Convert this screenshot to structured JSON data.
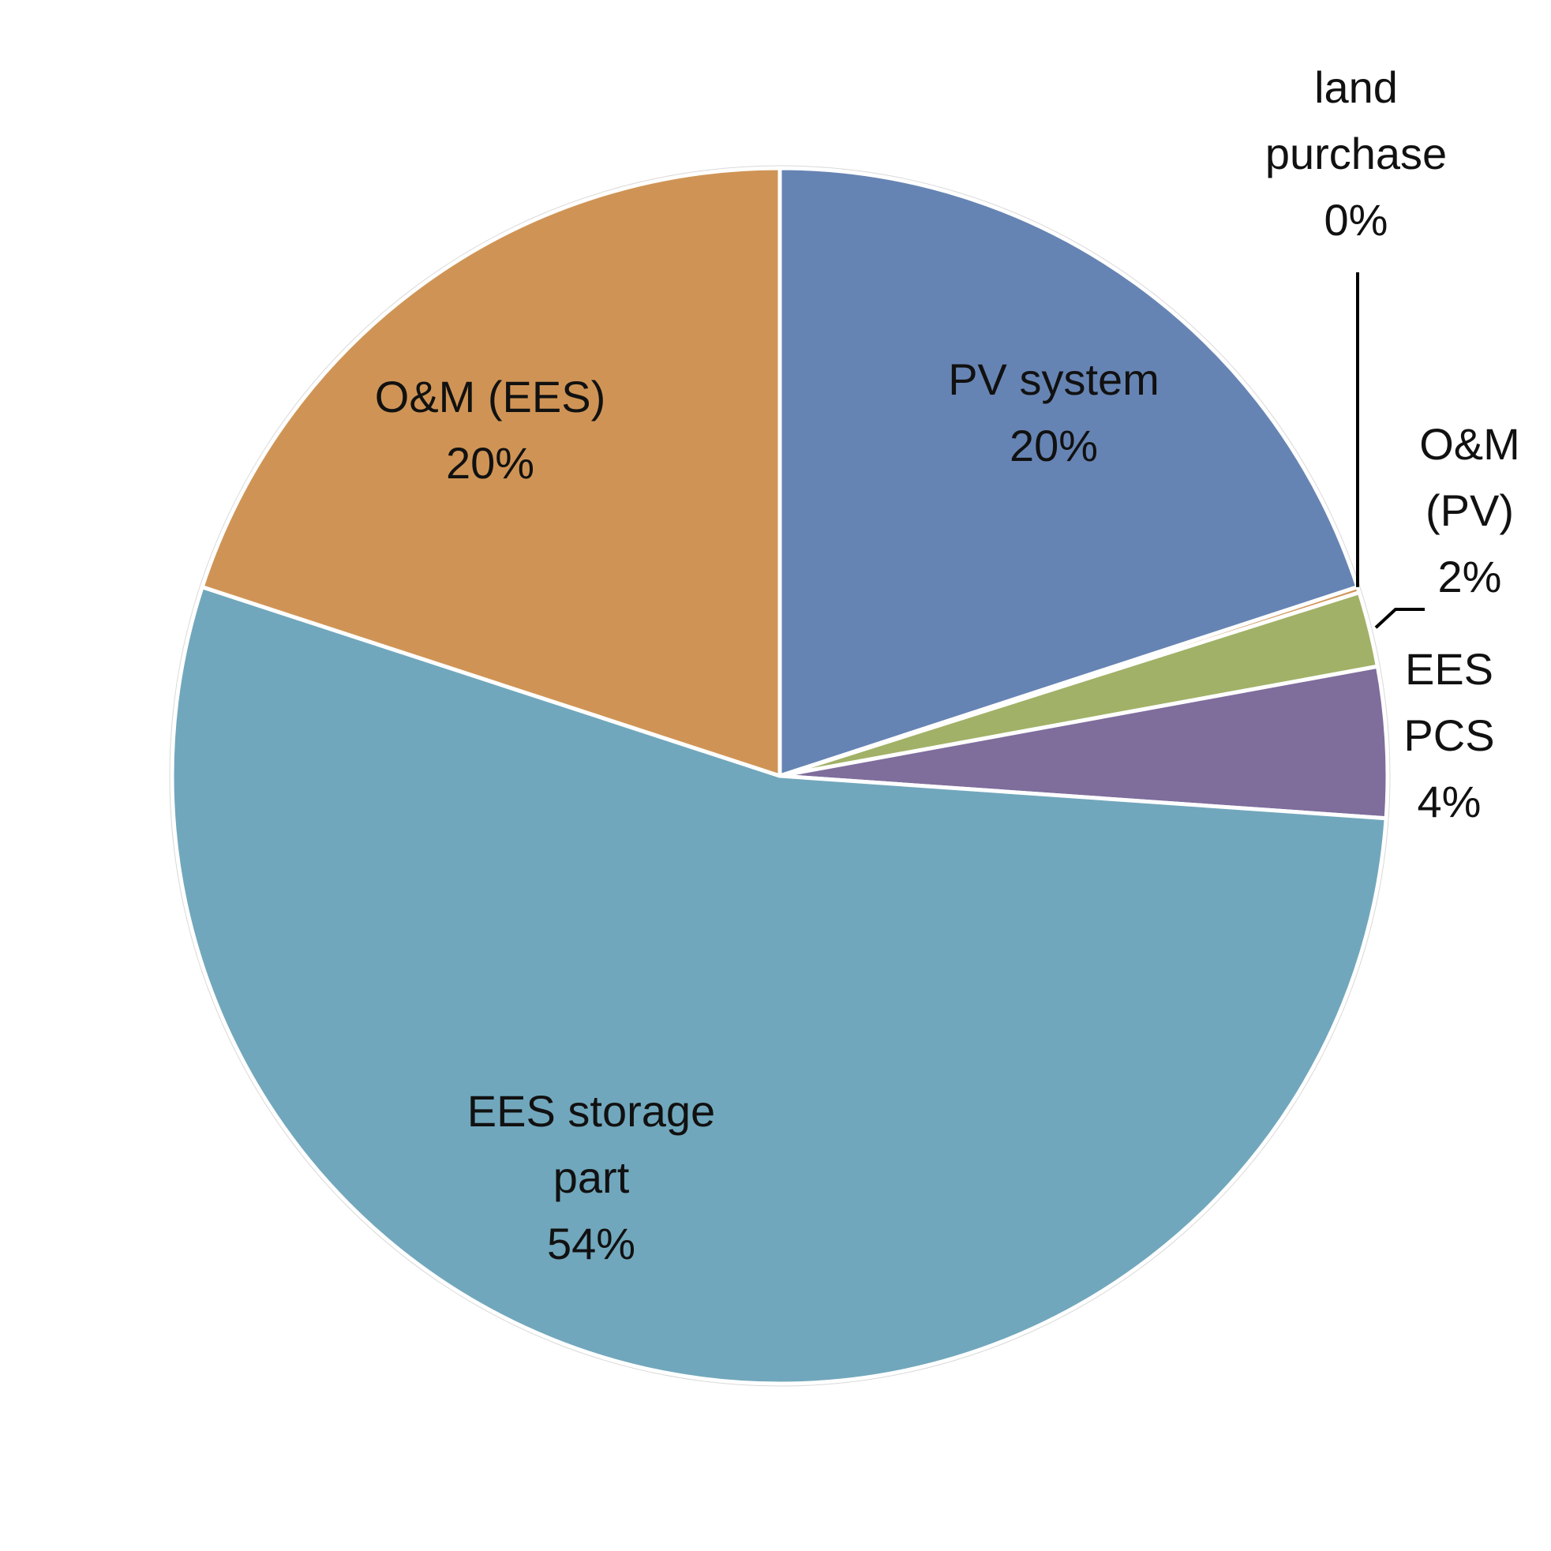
{
  "chart_data": {
    "type": "pie",
    "title": "",
    "start_angle_deg": 90,
    "direction": "clockwise",
    "slices": [
      {
        "label": "PV system",
        "value": 20,
        "value_label": "20%",
        "color": "#6684B3"
      },
      {
        "label": "land purchase",
        "value": 0.15,
        "value_label": "0%",
        "color": "#CF9455"
      },
      {
        "label": "O&M (PV)",
        "value": 2,
        "value_label": "2%",
        "color": "#A1B167"
      },
      {
        "label": "EES PCS",
        "value": 4,
        "value_label": "4%",
        "color": "#7F6D9C"
      },
      {
        "label": "EES storage part",
        "value": 54,
        "value_label": "54%",
        "color": "#71A7BC"
      },
      {
        "label": "O&M (EES)",
        "value": 20,
        "value_label": "20%",
        "color": "#CF9455"
      }
    ]
  }
}
